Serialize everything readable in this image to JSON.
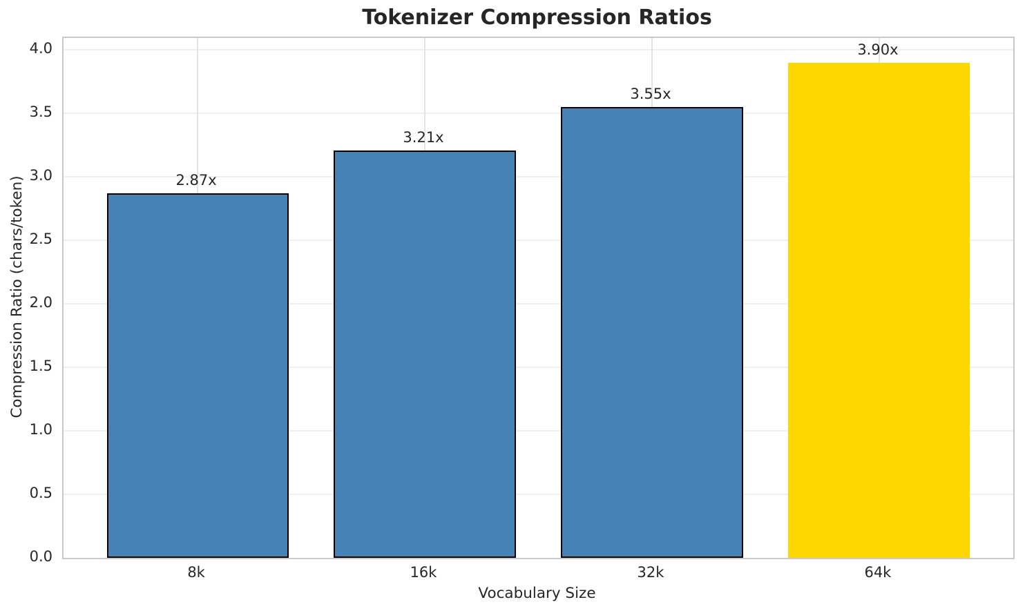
{
  "chart_data": {
    "type": "bar",
    "title": "Tokenizer Compression Ratios",
    "xlabel": "Vocabulary Size",
    "ylabel": "Compression Ratio (chars/token)",
    "categories": [
      "8k",
      "16k",
      "32k",
      "64k"
    ],
    "values": [
      2.87,
      3.21,
      3.55,
      3.9
    ],
    "value_labels": [
      "2.87x",
      "3.21x",
      "3.55x",
      "3.90x"
    ],
    "bar_colors": [
      "#4682B4",
      "#4682B4",
      "#4682B4",
      "#FFD700"
    ],
    "bar_edge_colors": [
      "#000000",
      "#000000",
      "#000000",
      "none"
    ],
    "ytick_labels": [
      "0.0",
      "0.5",
      "1.0",
      "1.5",
      "2.0",
      "2.5",
      "3.0",
      "3.5",
      "4.0"
    ],
    "yticks": [
      0.0,
      0.5,
      1.0,
      1.5,
      2.0,
      2.5,
      3.0,
      3.5,
      4.0
    ],
    "ylim": [
      0,
      4.095
    ],
    "grid": "both",
    "grid_color": "#efefef",
    "spine_color": "#c9c9c9",
    "text_color": "#262626",
    "legend": "none"
  }
}
